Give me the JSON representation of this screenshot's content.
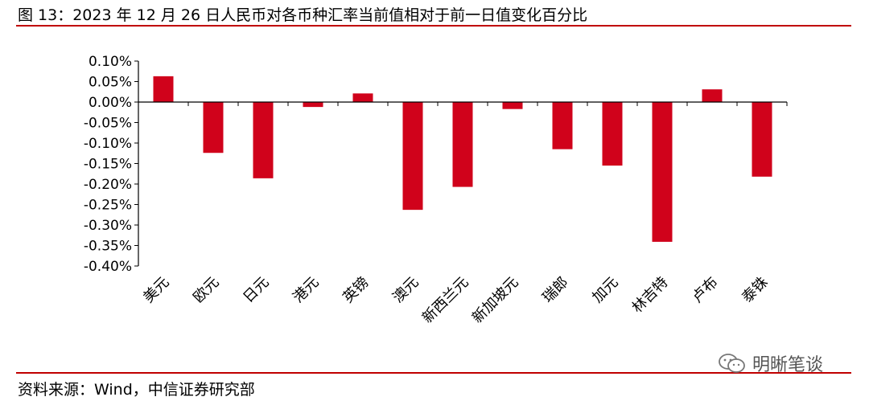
{
  "figure": {
    "title": "图 13：2023 年 12 月 26 日人民币对各币种汇率当前值相对于前一日值变化百分比",
    "source": "资料来源：Wind，中信证券研究部",
    "watermark": "明晰笔谈",
    "watermark_icon": "wechat-icon"
  },
  "colors": {
    "bar": "#d0021b",
    "rule": "#c00000",
    "axis": "#000000"
  },
  "chart_data": {
    "type": "bar",
    "title": "",
    "xlabel": "",
    "ylabel": "",
    "categories": [
      "美元",
      "欧元",
      "日元",
      "港元",
      "英镑",
      "澳元",
      "新西兰元",
      "新加坡元",
      "瑞郎",
      "加元",
      "林吉特",
      "卢布",
      "泰铢"
    ],
    "values": [
      0.063,
      -0.124,
      -0.186,
      -0.012,
      0.021,
      -0.263,
      -0.207,
      -0.017,
      -0.115,
      -0.155,
      -0.341,
      0.031,
      -0.182
    ],
    "unit": "%",
    "ylim": [
      -0.4,
      0.1
    ],
    "yticks": [
      "0.10%",
      "0.05%",
      "0.00%",
      "-0.05%",
      "-0.10%",
      "-0.15%",
      "-0.20%",
      "-0.25%",
      "-0.30%",
      "-0.35%",
      "-0.40%"
    ],
    "grid": false,
    "legend": "none"
  }
}
